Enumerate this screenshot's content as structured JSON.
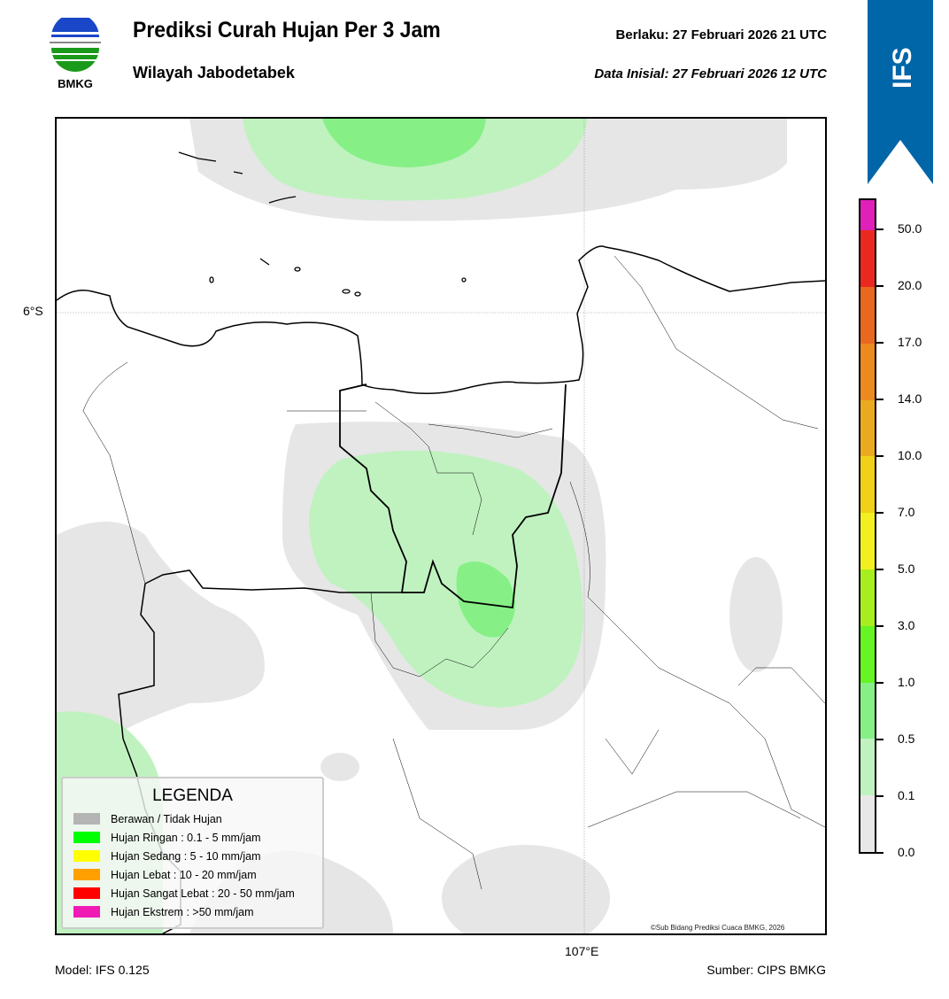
{
  "header": {
    "title": "Prediksi Curah Hujan Per 3 Jam",
    "subtitle": "Wilayah Jabodetabek",
    "valid": "Berlaku:  27 Februari 2026 21 UTC",
    "initial": "Data Inisial:  27 Februari 2026 12 UTC",
    "logo_text": "BMKG",
    "model_badge": "IFS"
  },
  "map": {
    "lat_label": "6°S",
    "lon_label": "107°E",
    "copyright": "©Sub Bidang Prediksi Cuaca BMKG, 2026"
  },
  "legend": {
    "title": "LEGENDA",
    "items": [
      {
        "label": "Berawan / Tidak Hujan",
        "color": "#b4b4b4"
      },
      {
        "label": "Hujan Ringan : 0.1 - 5 mm/jam",
        "color": "#00ff00"
      },
      {
        "label": "Hujan Sedang : 5 - 10 mm/jam",
        "color": "#ffff00"
      },
      {
        "label": "Hujan Lebat : 10 - 20 mm/jam",
        "color": "#ffa000"
      },
      {
        "label": "Hujan Sangat Lebat : 20 - 50 mm/jam",
        "color": "#ff0000"
      },
      {
        "label": "Hujan Ekstrem : >50 mm/jam",
        "color": "#f01ab4"
      }
    ]
  },
  "colorbar": {
    "ticks": [
      "0.0",
      "0.1",
      "0.5",
      "1.0",
      "3.0",
      "5.0",
      "7.0",
      "10.0",
      "14.0",
      "17.0",
      "20.0",
      "50.0"
    ],
    "colors": [
      "#e8e8e8",
      "#c0f2c0",
      "#86f086",
      "#66f522",
      "#a8ee1e",
      "#f2f020",
      "#f0d018",
      "#eaaa20",
      "#ec8a20",
      "#e86820",
      "#ea2820",
      "#e020b8"
    ]
  },
  "footer": {
    "model": "Model: IFS 0.125",
    "source": "Sumber: CIPS BMKG"
  }
}
